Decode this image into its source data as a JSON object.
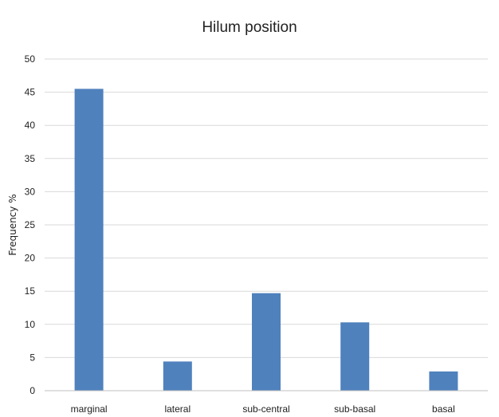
{
  "chart_data": {
    "type": "bar",
    "title": "Hilum position",
    "xlabel": "",
    "ylabel": "Frequency %",
    "categories": [
      "marginal",
      "lateral",
      "sub-central",
      "sub-basal",
      "basal"
    ],
    "values": [
      45.5,
      4.4,
      14.7,
      10.3,
      2.9
    ],
    "ylim": [
      0,
      50
    ],
    "yticks": [
      0,
      5,
      10,
      15,
      20,
      25,
      30,
      35,
      40,
      45,
      50
    ],
    "grid": true,
    "legend": "none",
    "bar_color": "#4f81bd"
  }
}
